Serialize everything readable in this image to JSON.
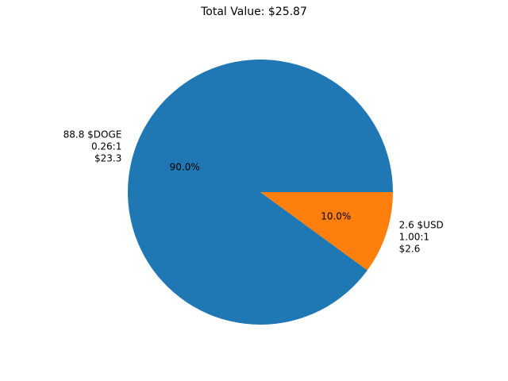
{
  "chart_data": {
    "type": "pie",
    "title": "Total Value: $25.87",
    "slices": [
      {
        "value": 23.3,
        "percent": 90.0,
        "pct_label": "90.0%",
        "label_lines": [
          "88.8 $DOGE",
          "0.26:1",
          "$23.3"
        ],
        "color": "#1f77b4"
      },
      {
        "value": 2.6,
        "percent": 10.0,
        "pct_label": "10.0%",
        "label_lines": [
          "2.6 $USD",
          "1.00:1",
          "$2.6"
        ],
        "color": "#ff7f0e"
      }
    ],
    "start_angle_deg": 0,
    "direction": "counterclockwise"
  }
}
